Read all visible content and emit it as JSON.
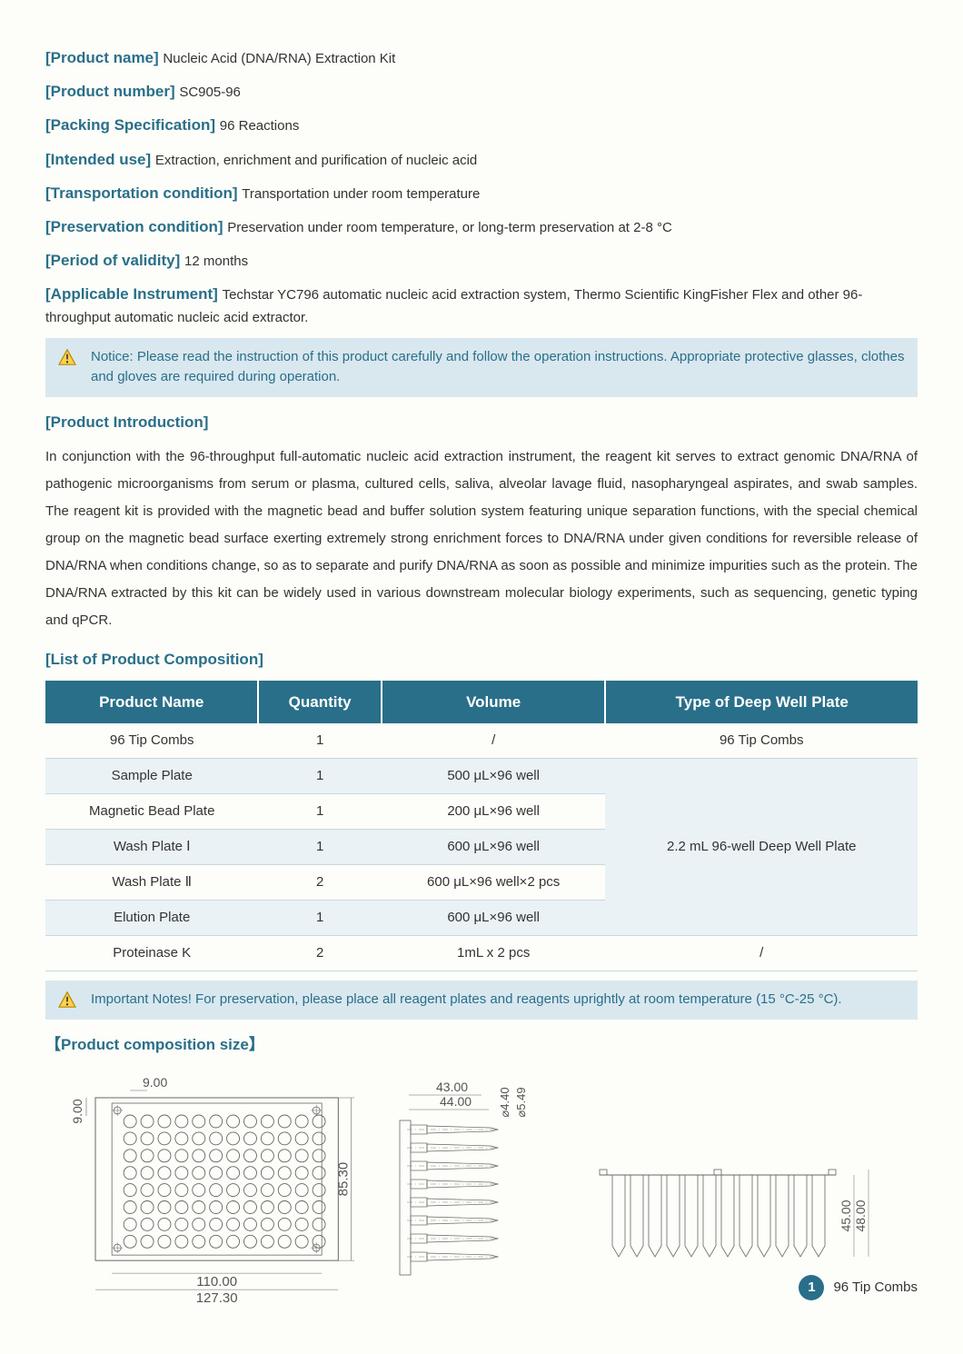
{
  "fields": [
    {
      "label": "[Product name]",
      "value": "Nucleic Acid (DNA/RNA) Extraction Kit"
    },
    {
      "label": "[Product number]",
      "value": "SC905-96"
    },
    {
      "label": "[Packing Specification]",
      "value": "96 Reactions"
    },
    {
      "label": "[Intended use]",
      "value": "Extraction, enrichment and purification of nucleic acid"
    },
    {
      "label": "[Transportation condition]",
      "value": "Transportation under room temperature"
    },
    {
      "label": "[Preservation condition]",
      "value": "Preservation under room temperature, or long-term preservation at 2-8 °C"
    },
    {
      "label": "[Period of validity]",
      "value": "12 months"
    },
    {
      "label": "[Applicable Instrument]",
      "value": "Techstar YC796 automatic nucleic acid extraction system, Thermo Scientific KingFisher Flex and other 96-throughput automatic nucleic acid extractor."
    }
  ],
  "notice1": "Notice: Please read the instruction of this product carefully and follow the operation instructions. Appropriate protective glasses, clothes and gloves are required during operation.",
  "introHeader": "[Product Introduction]",
  "introText": "In conjunction with the 96-throughput full-automatic nucleic acid extraction instrument, the reagent kit serves to extract genomic DNA/RNA of pathogenic microorganisms from serum or plasma, cultured cells, saliva, alveolar lavage fluid, nasopharyngeal aspirates, and swab samples. The reagent kit is provided with the magnetic bead and buffer solution system featuring unique separation functions, with the special chemical group on the magnetic bead surface exerting extremely strong enrichment forces to DNA/RNA under given conditions for reversible release of DNA/RNA when conditions change, so as to separate and purify DNA/RNA as soon as possible and minimize impurities such as the protein. The DNA/RNA extracted by this kit can be widely used in various downstream molecular biology experiments, such as sequencing, genetic typing and qPCR.",
  "compHeader": "[List of Product Composition]",
  "table": {
    "columns": [
      "Product Name",
      "Quantity",
      "Volume",
      "Type of Deep Well Plate"
    ],
    "rows": [
      {
        "cells": [
          "96 Tip Combs",
          "1",
          "/",
          "96 Tip Combs"
        ],
        "alt": false
      },
      {
        "cells": [
          "Sample Plate",
          "1",
          "500 μL×96 well"
        ],
        "alt": true,
        "mergeStart": true,
        "mergeText": "2.2 mL 96-well Deep Well Plate",
        "mergeSpan": 5
      },
      {
        "cells": [
          "Magnetic Bead Plate",
          "1",
          "200 μL×96 well"
        ],
        "alt": false
      },
      {
        "cells": [
          "Wash Plate Ⅰ",
          "1",
          "600 μL×96 well"
        ],
        "alt": true
      },
      {
        "cells": [
          "Wash Plate Ⅱ",
          "2",
          "600 μL×96 well×2 pcs"
        ],
        "alt": false
      },
      {
        "cells": [
          "Elution Plate",
          "1",
          "600 μL×96 well"
        ],
        "alt": true
      },
      {
        "cells": [
          "Proteinase K",
          "2",
          "1mL x 2 pcs",
          "/"
        ],
        "alt": false
      }
    ]
  },
  "notice2": "Important Notes! For preservation, please place all reagent plates and reagents uprightly at room temperature (15 °C-25 °C).",
  "sizeHeader": "【Product composition size】",
  "diagram": {
    "topView": {
      "width": 127.3,
      "innerWidth": 110.0,
      "height": 85.3,
      "pitch": 9.0,
      "marginTop": 9.0,
      "cols": 12,
      "rows": 8
    },
    "sideView": {
      "tipLen": 43.0,
      "slotLen": 44.0,
      "tipDia": 4.4,
      "slotDia": 5.49
    },
    "profileView": {
      "depth": 45.0,
      "total": 48.0
    },
    "strokeColor": "#666",
    "textColor": "#555"
  },
  "footerBadge": {
    "num": "1",
    "label": "96 Tip Combs"
  },
  "colors": {
    "brand": "#2a6f8a",
    "noticeBg": "#d9e8ef",
    "altRow": "#eaf2f6",
    "border": "#c9d7de"
  }
}
